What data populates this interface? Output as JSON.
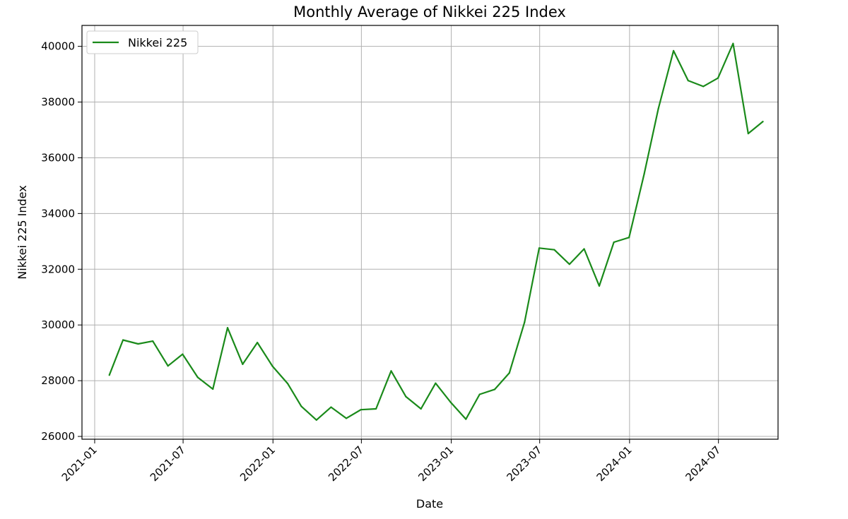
{
  "chart_data": {
    "type": "line",
    "title": "Monthly Average of Nikkei 225 Index",
    "xlabel": "Date",
    "ylabel": "Nikkei 225 Index",
    "legend": {
      "position": "top-left",
      "entries": [
        "Nikkei 225"
      ]
    },
    "grid": true,
    "colors": {
      "series": "#1a8a1a"
    },
    "x_ticks": [
      "2021-01",
      "2021-07",
      "2022-01",
      "2022-07",
      "2023-01",
      "2023-07",
      "2024-01",
      "2024-07"
    ],
    "y_ticks": [
      26000,
      28000,
      30000,
      32000,
      34000,
      36000,
      38000,
      40000
    ],
    "ylim": [
      25900,
      40750
    ],
    "xlim": [
      "2020-12-06",
      "2024-10-31"
    ],
    "x": [
      "2021-01-31",
      "2021-02-28",
      "2021-03-31",
      "2021-04-30",
      "2021-05-31",
      "2021-06-30",
      "2021-07-31",
      "2021-08-31",
      "2021-09-30",
      "2021-10-31",
      "2021-11-30",
      "2021-12-31",
      "2022-01-31",
      "2022-02-28",
      "2022-03-31",
      "2022-04-30",
      "2022-05-31",
      "2022-06-30",
      "2022-07-31",
      "2022-08-31",
      "2022-09-30",
      "2022-10-31",
      "2022-11-30",
      "2022-12-31",
      "2023-01-31",
      "2023-02-28",
      "2023-03-31",
      "2023-04-30",
      "2023-05-31",
      "2023-06-30",
      "2023-07-31",
      "2023-08-31",
      "2023-09-30",
      "2023-10-31",
      "2023-11-30",
      "2023-12-31",
      "2024-01-31",
      "2024-02-29",
      "2024-03-31",
      "2024-04-30",
      "2024-05-31",
      "2024-06-30",
      "2024-07-31",
      "2024-08-31",
      "2024-09-30"
    ],
    "series": [
      {
        "name": "Nikkei 225",
        "values": [
          28200,
          29460,
          29320,
          29420,
          28530,
          28950,
          28120,
          27700,
          29900,
          28590,
          29370,
          28520,
          27900,
          27080,
          26590,
          27050,
          26650,
          26960,
          26990,
          28350,
          27430,
          26990,
          27910,
          27220,
          26620,
          27510,
          27690,
          28280,
          30100,
          32760,
          32700,
          32180,
          32730,
          31400,
          32970,
          33140,
          35420,
          37760,
          39840,
          38770,
          38560,
          38860,
          40100,
          36870,
          37300
        ]
      }
    ]
  }
}
